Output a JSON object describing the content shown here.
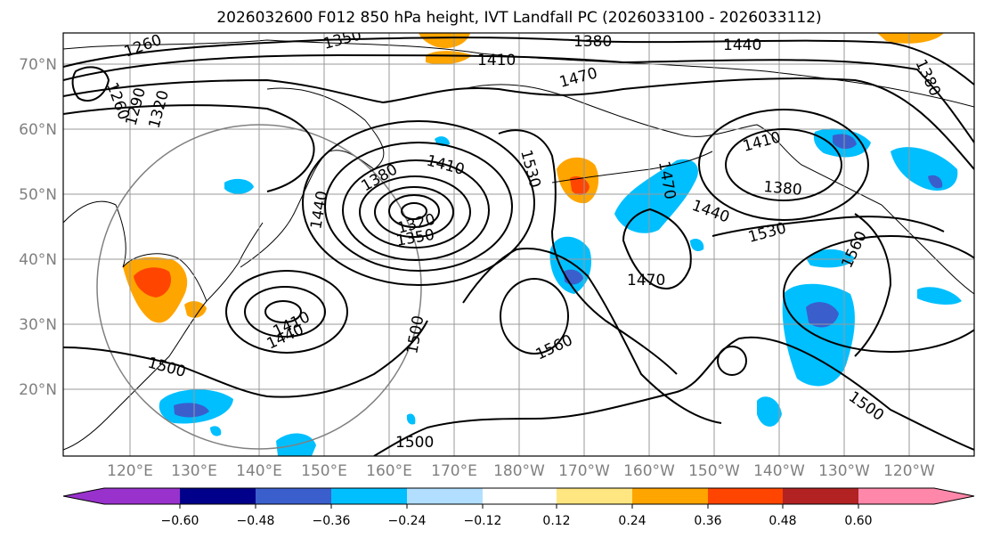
{
  "title": "2026032600 F012 850 hPa height, IVT Landfall PC (2026033100 - 2026033112)",
  "lat_labels": [
    "70°N",
    "60°N",
    "50°N",
    "40°N",
    "30°N",
    "20°N"
  ],
  "lon_labels": [
    "120°E",
    "130°E",
    "140°E",
    "150°E",
    "160°E",
    "170°E",
    "180°W",
    "170°W",
    "160°W",
    "150°W",
    "140°W",
    "130°W",
    "120°W"
  ],
  "contour_labels": [
    "1260",
    "1260",
    "1290",
    "1320",
    "1350",
    "1380",
    "1410",
    "1440",
    "1470",
    "1410",
    "1380",
    "1320",
    "1350",
    "1440",
    "1530",
    "1470",
    "1410",
    "1380",
    "1440",
    "1530",
    "1560",
    "1380",
    "1470",
    "1410",
    "1440",
    "1500",
    "1500",
    "1560",
    "1500",
    "1500"
  ],
  "colorbar": {
    "ticks": [
      "−0.60",
      "−0.48",
      "−0.36",
      "−0.24",
      "−0.12",
      "0.12",
      "0.24",
      "0.36",
      "0.48",
      "0.60"
    ],
    "colors": [
      "#9932cc",
      "#00008b",
      "#3a5fcd",
      "#00bfff",
      "#b2dfff",
      "#ffffff",
      "#ffe680",
      "#ffa500",
      "#ff4500",
      "#b22222",
      "#ff88aa"
    ]
  }
}
